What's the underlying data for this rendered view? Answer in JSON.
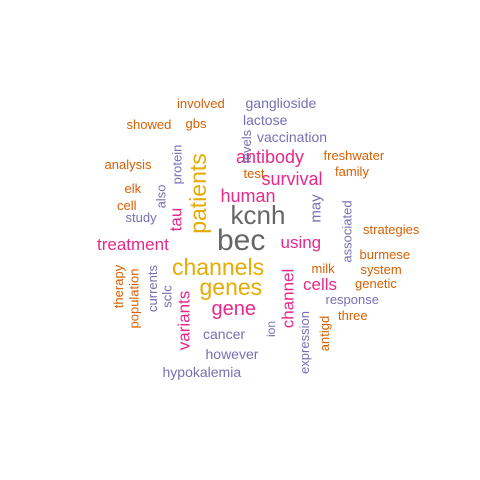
{
  "colors": {
    "orange": "#D95F02",
    "purple": "#7570B3",
    "magenta": "#E7298A",
    "gold": "#E6AB02",
    "gray": "#666666"
  },
  "words": [
    {
      "text": "bec",
      "color": "gray"
    },
    {
      "text": "kcnh",
      "color": "gray"
    },
    {
      "text": "channels",
      "color": "gold"
    },
    {
      "text": "genes",
      "color": "gold"
    },
    {
      "text": "patients",
      "color": "gold"
    },
    {
      "text": "gene",
      "color": "magenta"
    },
    {
      "text": "human",
      "color": "magenta"
    },
    {
      "text": "antibody",
      "color": "magenta"
    },
    {
      "text": "survival",
      "color": "magenta"
    },
    {
      "text": "treatment",
      "color": "magenta"
    },
    {
      "text": "using",
      "color": "magenta"
    },
    {
      "text": "cells",
      "color": "magenta"
    },
    {
      "text": "tau",
      "color": "magenta"
    },
    {
      "text": "channel",
      "color": "magenta"
    },
    {
      "text": "variants",
      "color": "magenta"
    },
    {
      "text": "may",
      "color": "purple"
    },
    {
      "text": "ganglioside",
      "color": "purple"
    },
    {
      "text": "lactose",
      "color": "purple"
    },
    {
      "text": "vaccination",
      "color": "purple"
    },
    {
      "text": "cancer",
      "color": "purple"
    },
    {
      "text": "however",
      "color": "purple"
    },
    {
      "text": "hypokalemia",
      "color": "purple"
    },
    {
      "text": "response",
      "color": "purple"
    },
    {
      "text": "expression",
      "color": "purple"
    },
    {
      "text": "associated",
      "color": "purple"
    },
    {
      "text": "currents",
      "color": "purple"
    },
    {
      "text": "sclc",
      "color": "purple"
    },
    {
      "text": "study",
      "color": "purple"
    },
    {
      "text": "also",
      "color": "purple"
    },
    {
      "text": "protein",
      "color": "purple"
    },
    {
      "text": "levels",
      "color": "purple"
    },
    {
      "text": "ion",
      "color": "purple"
    },
    {
      "text": "involved",
      "color": "orange"
    },
    {
      "text": "showed",
      "color": "orange"
    },
    {
      "text": "gbs",
      "color": "orange"
    },
    {
      "text": "analysis",
      "color": "orange"
    },
    {
      "text": "elk",
      "color": "orange"
    },
    {
      "text": "cell",
      "color": "orange"
    },
    {
      "text": "test",
      "color": "orange"
    },
    {
      "text": "freshwater",
      "color": "orange"
    },
    {
      "text": "family",
      "color": "orange"
    },
    {
      "text": "strategies",
      "color": "orange"
    },
    {
      "text": "burmese",
      "color": "orange"
    },
    {
      "text": "system",
      "color": "orange"
    },
    {
      "text": "milk",
      "color": "orange"
    },
    {
      "text": "genetic",
      "color": "orange"
    },
    {
      "text": "three",
      "color": "orange"
    },
    {
      "text": "therapy",
      "color": "orange"
    },
    {
      "text": "population",
      "color": "orange"
    },
    {
      "text": "antigd",
      "color": "orange"
    }
  ]
}
